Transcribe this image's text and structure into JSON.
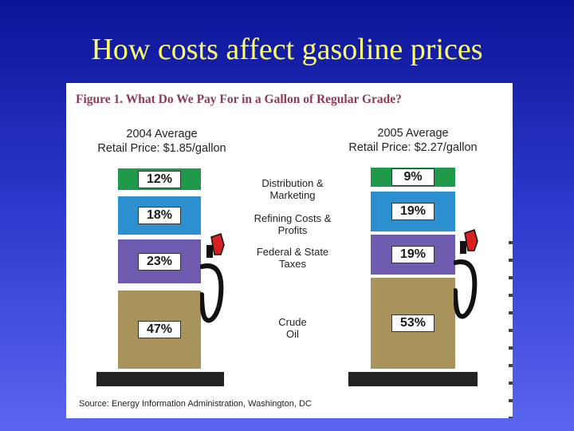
{
  "slide": {
    "title": "How costs affect gasoline prices"
  },
  "chart_data": {
    "type": "bar",
    "title": "Figure 1. What Do We Pay For in a Gallon of Regular Grade?",
    "categories": [
      "Distribution & Marketing",
      "Refining Costs & Profits",
      "Federal & State Taxes",
      "Crude Oil"
    ],
    "series": [
      {
        "name": "2004 Average",
        "price_label": "Retail Price: $1.85/gallon",
        "values": [
          12,
          18,
          23,
          47
        ],
        "labels": [
          "12%",
          "18%",
          "23%",
          "47%"
        ]
      },
      {
        "name": "2005 Average",
        "price_label": "Retail Price: $2.27/gallon",
        "values": [
          9,
          19,
          19,
          53
        ],
        "labels": [
          "9%",
          "19%",
          "19%",
          "53%"
        ]
      }
    ],
    "category_labels": {
      "distribution": [
        "Distribution &",
        "Marketing"
      ],
      "refining": [
        "Refining Costs &",
        "Profits"
      ],
      "taxes": [
        "Federal & State",
        "Taxes"
      ],
      "crude": [
        "Crude",
        "Oil"
      ]
    },
    "colors": {
      "distribution": "#1e9a4a",
      "refining": "#2b8fd0",
      "taxes": "#6e5bb0",
      "crude": "#a8935a"
    },
    "source": "Source: Energy Information Administration, Washington, DC"
  }
}
